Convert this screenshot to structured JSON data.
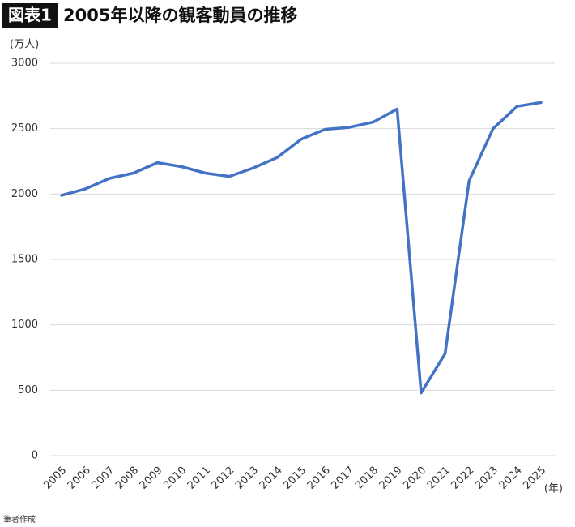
{
  "chart_data": {
    "type": "line",
    "badge": "図表1",
    "title": "2005年以降の観客動員の推移",
    "y_unit": "(万人)",
    "x_unit": "(年)",
    "source": "筆者作成",
    "categories": [
      "2005",
      "2006",
      "2007",
      "2008",
      "2009",
      "2010",
      "2011",
      "2012",
      "2013",
      "2014",
      "2015",
      "2016",
      "2017",
      "2018",
      "2019",
      "2020",
      "2021",
      "2022",
      "2023",
      "2024",
      "2025"
    ],
    "values": [
      1990,
      2040,
      2120,
      2160,
      2240,
      2210,
      2160,
      2135,
      2200,
      2280,
      2420,
      2495,
      2510,
      2550,
      2650,
      480,
      780,
      2100,
      2500,
      2670,
      2700
    ],
    "color": "#4472c4",
    "ylim": [
      0,
      3000
    ],
    "yticks": [
      0,
      500,
      1000,
      1500,
      2000,
      2500,
      3000
    ],
    "grid": true
  }
}
